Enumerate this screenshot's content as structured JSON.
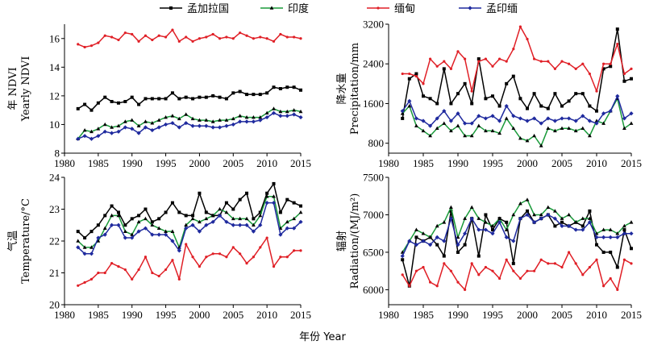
{
  "figure": {
    "xlabel": "年份 Year",
    "legend": [
      {
        "name": "孟加拉国",
        "color": "#000000"
      },
      {
        "name": "印度",
        "color": "#1a9a3a"
      },
      {
        "name": "缅甸",
        "color": "#e01f26"
      },
      {
        "name": "孟印缅",
        "color": "#1f2a9e"
      }
    ]
  },
  "chart_data": [
    {
      "type": "line",
      "ylabel": [
        "年 NDVI",
        "Yearly NDVI"
      ],
      "xlim": [
        1980,
        2015
      ],
      "ylim": [
        8,
        17
      ],
      "xticks": [
        1980,
        1985,
        1990,
        1995,
        2000,
        2005,
        2010,
        2015
      ],
      "yticks": [
        8,
        10,
        12,
        14,
        16
      ],
      "x": [
        1982,
        1983,
        1984,
        1985,
        1986,
        1987,
        1988,
        1989,
        1990,
        1991,
        1992,
        1993,
        1994,
        1995,
        1996,
        1997,
        1998,
        1999,
        2000,
        2001,
        2002,
        2003,
        2004,
        2005,
        2006,
        2007,
        2008,
        2009,
        2010,
        2011,
        2012,
        2013,
        2014,
        2015
      ],
      "series": [
        {
          "name": "孟加拉国",
          "color": "#000000",
          "values": [
            11.1,
            11.4,
            11.0,
            11.5,
            11.9,
            11.6,
            11.5,
            11.6,
            11.9,
            11.4,
            11.8,
            11.8,
            11.8,
            11.8,
            12.2,
            11.8,
            11.9,
            11.8,
            11.9,
            11.9,
            12.0,
            11.9,
            11.8,
            12.2,
            12.3,
            12.1,
            12.1,
            12.1,
            12.2,
            12.6,
            12.5,
            12.6,
            12.6,
            12.4
          ]
        },
        {
          "name": "印度",
          "color": "#1a9a3a",
          "values": [
            9.0,
            9.6,
            9.5,
            9.7,
            10.0,
            9.8,
            9.9,
            10.2,
            10.3,
            9.9,
            10.2,
            10.1,
            10.3,
            10.5,
            10.6,
            10.4,
            10.7,
            10.4,
            10.3,
            10.3,
            10.2,
            10.3,
            10.3,
            10.4,
            10.6,
            10.5,
            10.5,
            10.5,
            10.8,
            11.1,
            10.9,
            10.9,
            11.0,
            10.9
          ]
        },
        {
          "name": "缅甸",
          "color": "#e01f26",
          "values": [
            15.6,
            15.4,
            15.5,
            15.7,
            16.2,
            16.1,
            15.9,
            16.4,
            16.3,
            15.8,
            16.2,
            15.9,
            16.2,
            16.1,
            16.6,
            15.8,
            16.1,
            15.8,
            16.0,
            16.1,
            16.3,
            16.0,
            16.1,
            16.0,
            16.4,
            16.2,
            16.0,
            16.1,
            16.0,
            15.8,
            16.3,
            16.1,
            16.1,
            16.0
          ]
        },
        {
          "name": "孟印缅",
          "color": "#1f2a9e",
          "values": [
            9.0,
            9.2,
            9.0,
            9.2,
            9.5,
            9.4,
            9.5,
            9.8,
            9.7,
            9.4,
            9.8,
            9.6,
            9.8,
            10.0,
            10.1,
            9.8,
            10.1,
            9.9,
            9.9,
            9.9,
            9.8,
            9.8,
            9.9,
            10.0,
            10.2,
            10.2,
            10.2,
            10.3,
            10.5,
            10.8,
            10.6,
            10.6,
            10.7,
            10.5
          ]
        }
      ]
    },
    {
      "type": "line",
      "ylabel": [
        "降水量",
        "Precipitation/mm"
      ],
      "xlim": [
        1980,
        2015
      ],
      "ylim": [
        600,
        3200
      ],
      "xticks": [
        1980,
        1985,
        1990,
        1995,
        2000,
        2005,
        2010,
        2015
      ],
      "yticks": [
        800,
        1600,
        2400,
        3200
      ],
      "x": [
        1982,
        1983,
        1984,
        1985,
        1986,
        1987,
        1988,
        1989,
        1990,
        1991,
        1992,
        1993,
        1994,
        1995,
        1996,
        1997,
        1998,
        1999,
        2000,
        2001,
        2002,
        2003,
        2004,
        2005,
        2006,
        2007,
        2008,
        2009,
        2010,
        2011,
        2012,
        2013,
        2014,
        2015
      ],
      "series": [
        {
          "name": "孟加拉国",
          "color": "#000000",
          "values": [
            1300,
            2100,
            2200,
            1750,
            1700,
            1600,
            2300,
            1600,
            1800,
            2000,
            1600,
            2500,
            1700,
            1750,
            1550,
            2000,
            2150,
            1700,
            1500,
            1800,
            1550,
            1500,
            1800,
            1550,
            1650,
            1800,
            1800,
            1550,
            1450,
            2300,
            2350,
            3100,
            2050,
            2100
          ]
        },
        {
          "name": "印度",
          "color": "#1a9a3a",
          "values": [
            1400,
            1550,
            1150,
            1050,
            950,
            1100,
            1200,
            1050,
            1150,
            950,
            950,
            1150,
            1050,
            1050,
            1000,
            1300,
            1100,
            900,
            850,
            950,
            750,
            1100,
            1050,
            1100,
            1100,
            1050,
            1100,
            950,
            1250,
            1200,
            1450,
            1700,
            1100,
            1200
          ]
        },
        {
          "name": "缅甸",
          "color": "#e01f26",
          "values": [
            2200,
            2200,
            2150,
            2000,
            2500,
            2350,
            2450,
            2300,
            2650,
            2500,
            1850,
            2450,
            2500,
            2350,
            2500,
            2450,
            2700,
            3150,
            2900,
            2500,
            2450,
            2450,
            2300,
            2450,
            2400,
            2300,
            2400,
            2200,
            1850,
            2400,
            2400,
            2800,
            2200,
            2300
          ]
        },
        {
          "name": "孟印缅",
          "color": "#1f2a9e",
          "values": [
            1450,
            1650,
            1300,
            1250,
            1150,
            1300,
            1450,
            1250,
            1400,
            1200,
            1200,
            1350,
            1300,
            1350,
            1250,
            1550,
            1350,
            1300,
            1250,
            1300,
            1200,
            1300,
            1250,
            1300,
            1300,
            1250,
            1350,
            1250,
            1200,
            1400,
            1450,
            1750,
            1300,
            1400
          ]
        }
      ]
    },
    {
      "type": "line",
      "ylabel": [
        "气温",
        "Temperature/°C"
      ],
      "xlim": [
        1980,
        2015
      ],
      "ylim": [
        20,
        24
      ],
      "xticks": [
        1980,
        1985,
        1990,
        1995,
        2000,
        2005,
        2010,
        2015
      ],
      "yticks": [
        20,
        21,
        22,
        23,
        24
      ],
      "x": [
        1982,
        1983,
        1984,
        1985,
        1986,
        1987,
        1988,
        1989,
        1990,
        1991,
        1992,
        1993,
        1994,
        1995,
        1996,
        1997,
        1998,
        1999,
        2000,
        2001,
        2002,
        2003,
        2004,
        2005,
        2006,
        2007,
        2008,
        2009,
        2010,
        2011,
        2012,
        2013,
        2014,
        2015
      ],
      "series": [
        {
          "name": "孟加拉国",
          "color": "#000000",
          "values": [
            22.3,
            22.1,
            22.3,
            22.5,
            22.8,
            23.1,
            22.9,
            22.5,
            22.7,
            22.8,
            23.0,
            22.6,
            22.7,
            22.9,
            23.2,
            22.9,
            22.8,
            22.8,
            23.5,
            22.9,
            22.8,
            22.8,
            23.2,
            23.0,
            23.3,
            23.5,
            22.7,
            22.9,
            23.5,
            23.8,
            22.9,
            23.3,
            23.2,
            23.1
          ]
        },
        {
          "name": "印度",
          "color": "#1a9a3a",
          "values": [
            22.0,
            21.8,
            21.8,
            22.0,
            22.4,
            22.8,
            22.8,
            22.3,
            22.2,
            22.6,
            22.7,
            22.5,
            22.4,
            22.3,
            22.3,
            21.8,
            22.5,
            22.7,
            22.6,
            22.7,
            22.8,
            23.0,
            22.9,
            22.7,
            22.7,
            22.7,
            22.5,
            22.8,
            23.4,
            23.4,
            22.4,
            22.6,
            22.7,
            22.9
          ]
        },
        {
          "name": "缅甸",
          "color": "#e01f26",
          "values": [
            20.6,
            20.7,
            20.8,
            21.0,
            21.0,
            21.3,
            21.2,
            21.1,
            20.8,
            21.1,
            21.5,
            21.0,
            20.9,
            21.1,
            21.4,
            20.8,
            21.9,
            21.5,
            21.2,
            21.5,
            21.6,
            21.6,
            21.5,
            21.8,
            21.6,
            21.3,
            21.5,
            21.8,
            22.1,
            21.2,
            21.5,
            21.5,
            21.7,
            21.7
          ]
        },
        {
          "name": "孟印缅",
          "color": "#1f2a9e",
          "values": [
            21.8,
            21.6,
            21.6,
            22.1,
            22.2,
            22.5,
            22.5,
            22.1,
            22.1,
            22.3,
            22.4,
            22.2,
            22.2,
            22.2,
            22.0,
            21.7,
            22.4,
            22.5,
            22.3,
            22.5,
            22.6,
            22.8,
            22.6,
            22.5,
            22.5,
            22.5,
            22.3,
            22.5,
            23.2,
            23.2,
            22.2,
            22.4,
            22.4,
            22.6
          ]
        }
      ]
    },
    {
      "type": "line",
      "ylabel": [
        "辐射",
        "Radiation/(MJ/m²)"
      ],
      "xlim": [
        1980,
        2015
      ],
      "ylim": [
        5800,
        7500
      ],
      "xticks": [
        1980,
        1985,
        1990,
        1995,
        2000,
        2005,
        2010,
        2015
      ],
      "yticks": [
        6000,
        6500,
        7000,
        7500
      ],
      "x": [
        1982,
        1983,
        1984,
        1985,
        1986,
        1987,
        1988,
        1989,
        1990,
        1991,
        1992,
        1993,
        1994,
        1995,
        1996,
        1997,
        1998,
        1999,
        2000,
        2001,
        2002,
        2003,
        2004,
        2005,
        2006,
        2007,
        2008,
        2009,
        2010,
        2011,
        2012,
        2013,
        2014,
        2015
      ],
      "series": [
        {
          "name": "孟加拉国",
          "color": "#000000",
          "values": [
            6400,
            6050,
            6700,
            6650,
            6700,
            6600,
            6450,
            7050,
            6500,
            6600,
            6950,
            6450,
            7000,
            6800,
            6950,
            6900,
            6350,
            6950,
            7050,
            6900,
            6950,
            7000,
            6850,
            6900,
            6850,
            6900,
            6850,
            7050,
            6600,
            6500,
            6500,
            6300,
            6800,
            6550
          ]
        },
        {
          "name": "印度",
          "color": "#1a9a3a",
          "values": [
            6500,
            6650,
            6800,
            6750,
            6700,
            6850,
            6900,
            7100,
            6700,
            6950,
            7100,
            6950,
            6900,
            6850,
            6950,
            6800,
            7000,
            7150,
            7200,
            7000,
            7000,
            7100,
            7050,
            6950,
            7000,
            6900,
            6950,
            6950,
            6750,
            6800,
            6800,
            6750,
            6850,
            6900
          ]
        },
        {
          "name": "缅甸",
          "color": "#e01f26",
          "values": [
            6200,
            6050,
            6250,
            6300,
            6100,
            6050,
            6350,
            6250,
            6100,
            6000,
            6350,
            6200,
            6300,
            6250,
            6150,
            6400,
            6250,
            6150,
            6250,
            6250,
            6400,
            6350,
            6350,
            6300,
            6500,
            6350,
            6200,
            6300,
            6400,
            6050,
            6150,
            6000,
            6400,
            6350
          ]
        },
        {
          "name": "孟印缅",
          "color": "#1f2a9e",
          "values": [
            6450,
            6650,
            6600,
            6650,
            6600,
            6700,
            6650,
            6950,
            6600,
            6750,
            6950,
            6800,
            6800,
            6750,
            6900,
            6700,
            6650,
            6950,
            7000,
            6900,
            6950,
            7000,
            6950,
            6850,
            6850,
            6800,
            6800,
            6900,
            6700,
            6700,
            6700,
            6700,
            6750,
            6750
          ]
        }
      ]
    }
  ]
}
